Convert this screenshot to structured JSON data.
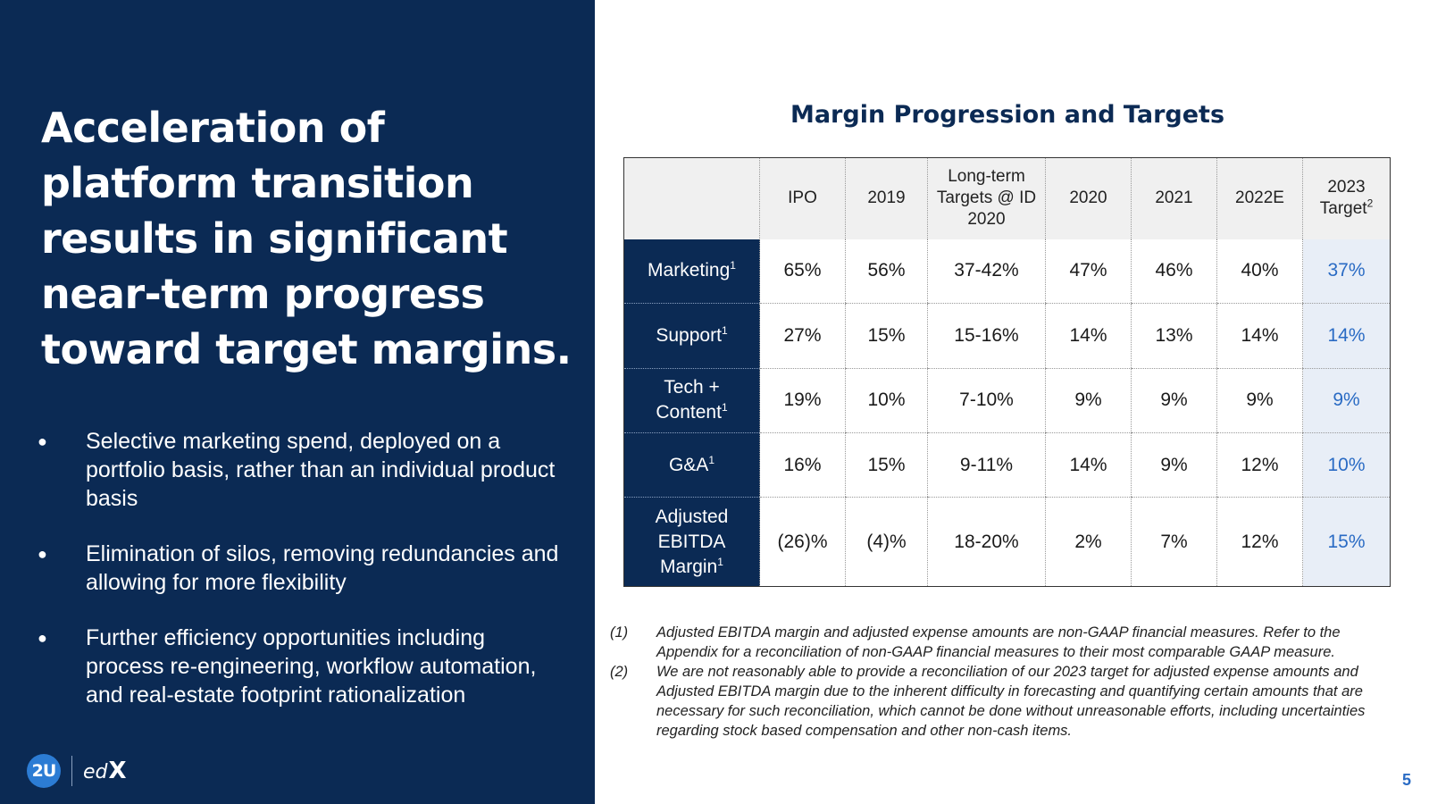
{
  "headline": "Acceleration of platform transition results in significant near-term progress toward target margins.",
  "bullets": [
    "Selective marketing spend, deployed on a portfolio basis, rather than an individual product basis",
    "Elimination of silos, removing redundancies and allowing for more flexibility",
    "Further efficiency opportunities including process re-engineering, workflow automation, and real-estate footprint rationalization"
  ],
  "logo": {
    "brand_2u": "2U",
    "brand_edx_prefix": "ed",
    "brand_edx_suffix": "X"
  },
  "table_title": "Margin Progression and Targets",
  "table": {
    "headers": [
      "IPO",
      "2019",
      "Long-term Targets @ ID 2020",
      "2020",
      "2021",
      "2022E",
      "2023 Target"
    ],
    "last_header_sup": "2",
    "rows": [
      {
        "label": "Marketing",
        "sup": "1",
        "values": [
          "65%",
          "56%",
          "37-42%",
          "47%",
          "46%",
          "40%",
          "37%"
        ]
      },
      {
        "label": "Support",
        "sup": "1",
        "values": [
          "27%",
          "15%",
          "15-16%",
          "14%",
          "13%",
          "14%",
          "14%"
        ]
      },
      {
        "label": "Tech + Content",
        "sup": "1",
        "values": [
          "19%",
          "10%",
          "7-10%",
          "9%",
          "9%",
          "9%",
          "9%"
        ]
      },
      {
        "label": "G&A",
        "sup": "1",
        "values": [
          "16%",
          "15%",
          "9-11%",
          "14%",
          "9%",
          "12%",
          "10%"
        ]
      },
      {
        "label": "Adjusted EBITDA Margin",
        "sup": "1",
        "values": [
          "(26)%",
          "(4)%",
          "18-20%",
          "2%",
          "7%",
          "12%",
          "15%"
        ]
      }
    ]
  },
  "footnotes": [
    {
      "num": "(1)",
      "text": "Adjusted EBITDA margin and adjusted expense amounts are non-GAAP financial measures.  Refer to the Appendix for a reconciliation of non-GAAP financial measures to their most comparable GAAP measure."
    },
    {
      "num": "(2)",
      "text": "We are not reasonably able to provide a reconciliation of our 2023 target for adjusted expense amounts and Adjusted EBITDA margin due to the inherent difficulty in forecasting and quantifying certain amounts that are necessary for such reconciliation, which cannot be done without unreasonable efforts, including uncertainties regarding stock based compensation and other non-cash items."
    }
  ],
  "page_number": "5",
  "colors": {
    "navy": "#0b2a54",
    "accent_blue": "#2a6bc4",
    "target_bg": "#e8eef7"
  }
}
